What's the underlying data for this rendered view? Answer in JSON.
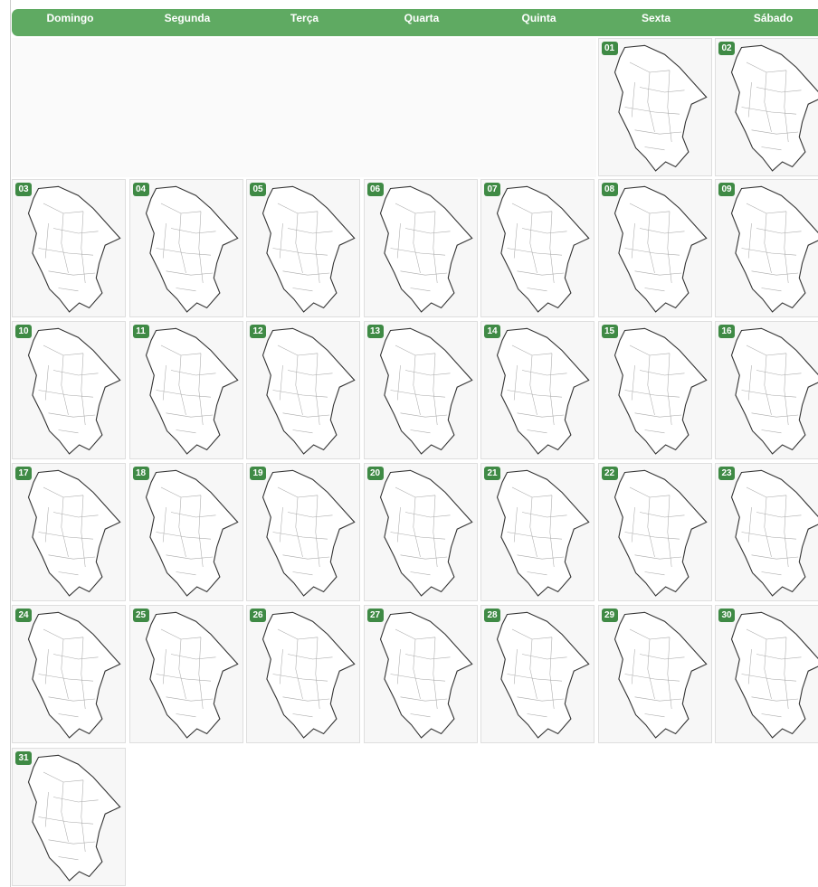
{
  "weekdays": [
    "Domingo",
    "Segunda",
    "Terça",
    "Quarta",
    "Quinta",
    "Sexta",
    "Sábado"
  ],
  "days": [
    "01",
    "02",
    "03",
    "04",
    "05",
    "06",
    "07",
    "08",
    "09",
    "10",
    "11",
    "12",
    "13",
    "14",
    "15",
    "16",
    "17",
    "18",
    "19",
    "20",
    "21",
    "22",
    "23",
    "24",
    "25",
    "26",
    "27",
    "28",
    "29",
    "30",
    "31"
  ]
}
